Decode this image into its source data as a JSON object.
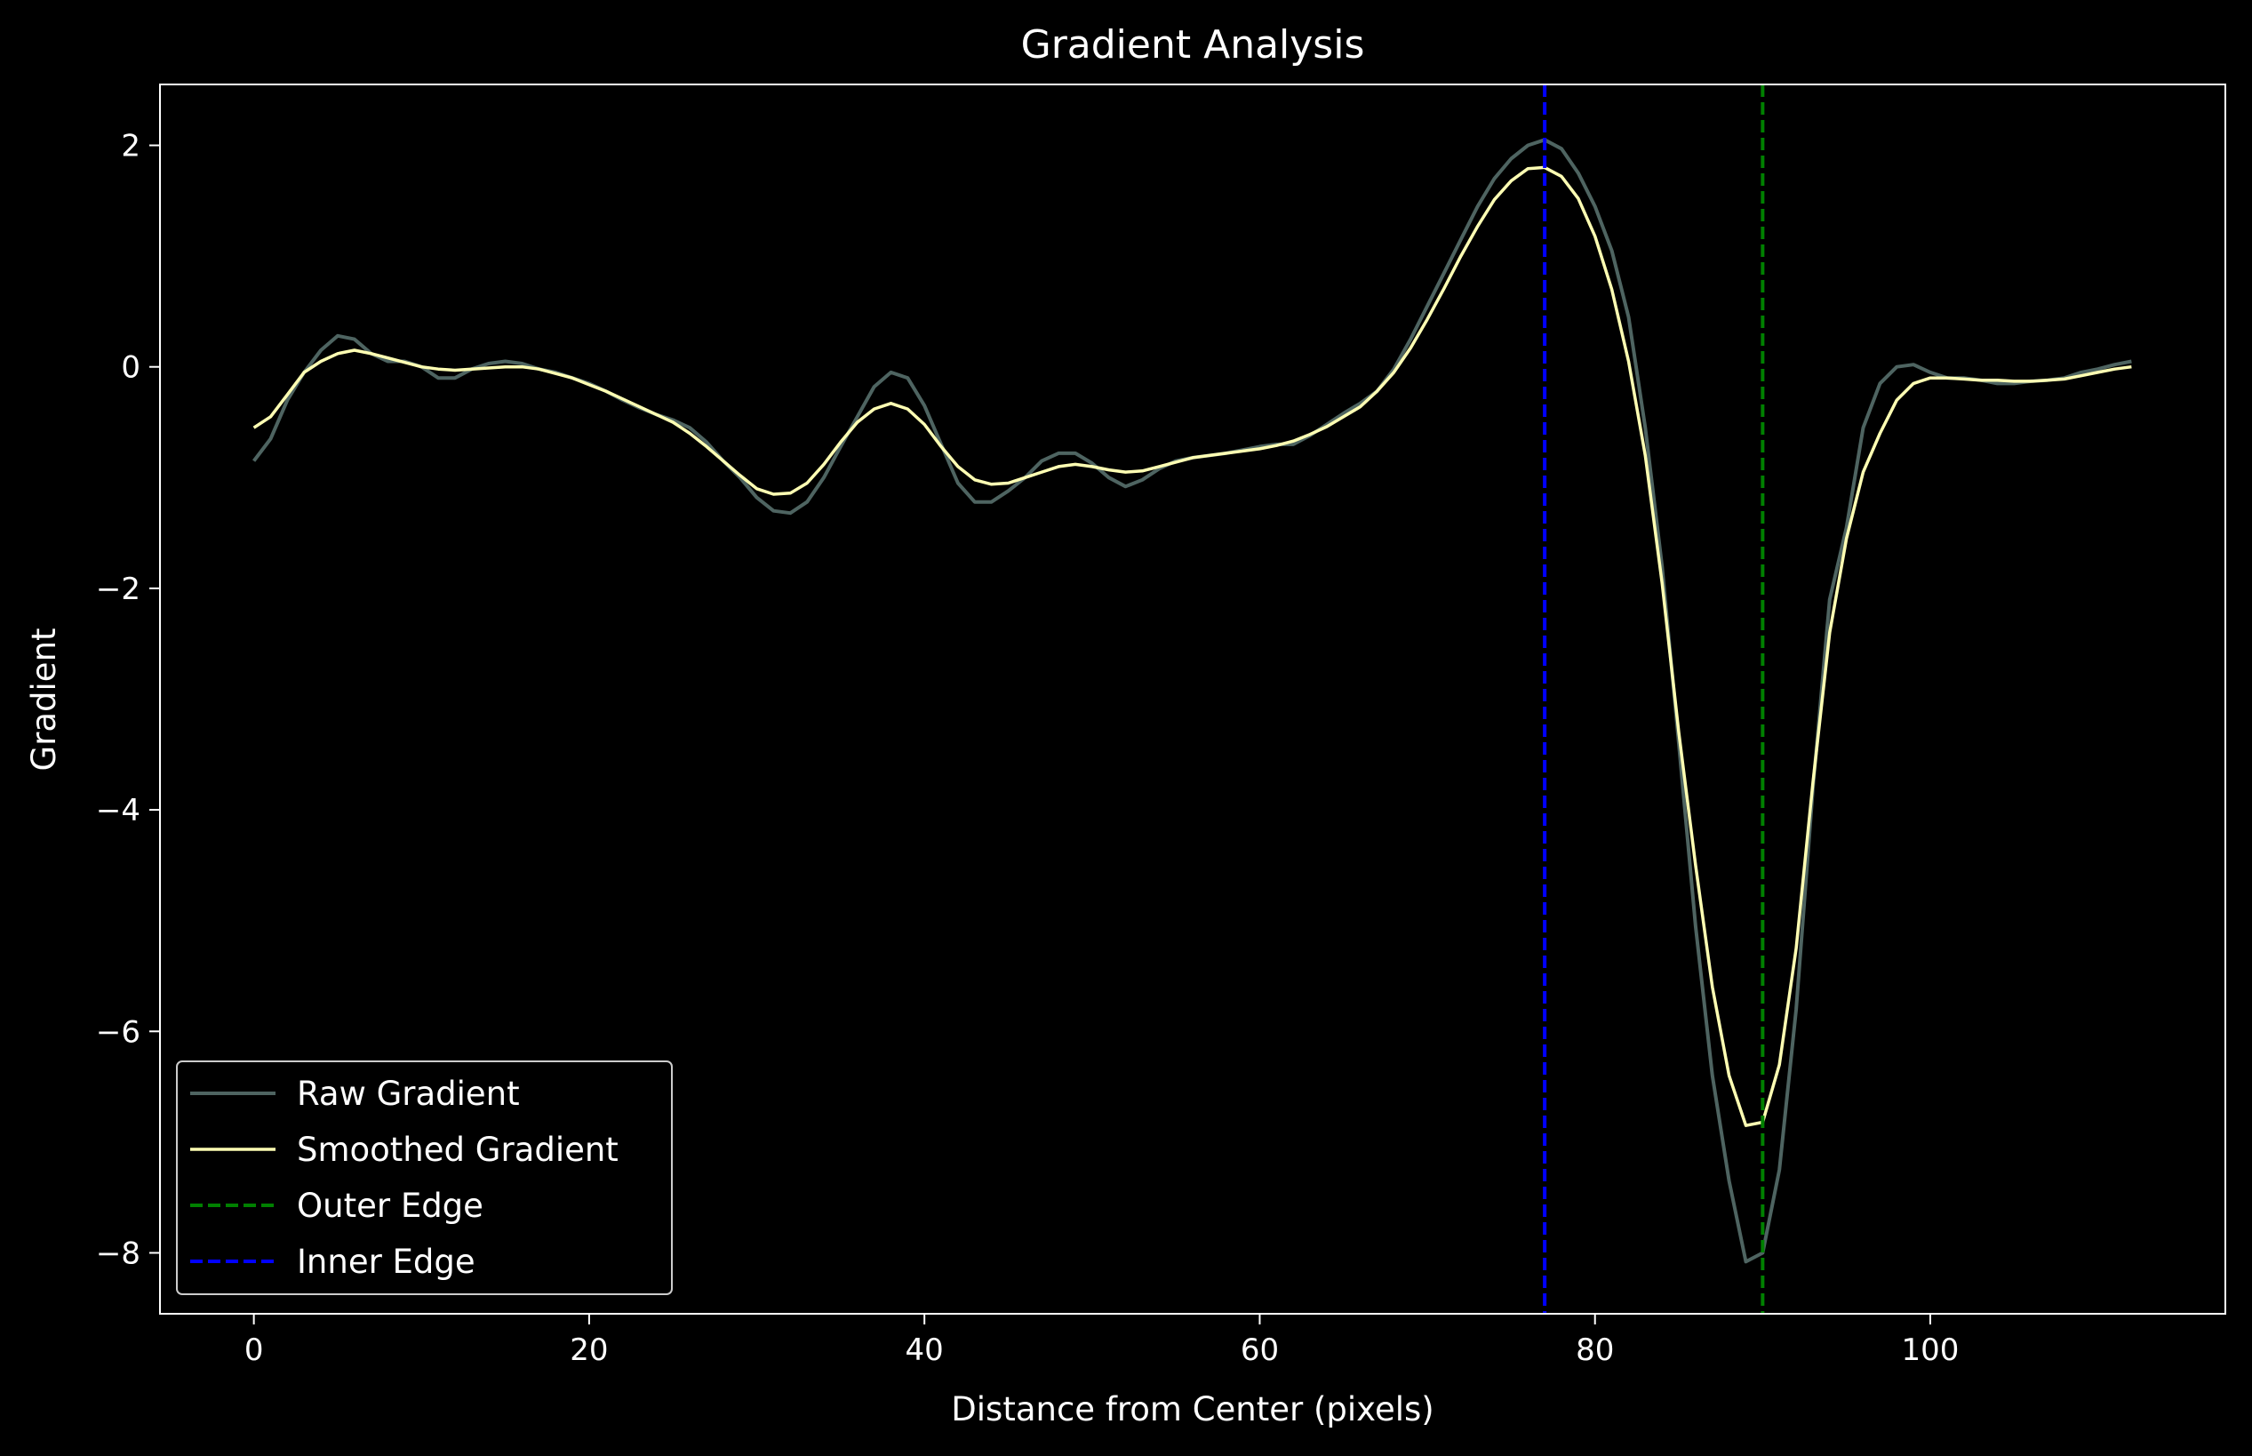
{
  "chart_data": {
    "type": "line",
    "title": "Gradient Analysis",
    "xlabel": "Distance from Center (pixels)",
    "ylabel": "Gradient",
    "xlim": [
      -5.6,
      117.6
    ],
    "ylim": [
      -8.55,
      2.55
    ],
    "xticks": [
      0,
      20,
      40,
      60,
      80,
      100
    ],
    "yticks": [
      2,
      0,
      -2,
      -4,
      -6,
      -8
    ],
    "xtick_labels": [
      "0",
      "20",
      "40",
      "60",
      "80",
      "100"
    ],
    "ytick_labels": [
      "2",
      "0",
      "−2",
      "−4",
      "−6",
      "−8"
    ],
    "grid": false,
    "legend_position": "lower-left",
    "series": [
      {
        "name": "Raw Gradient",
        "color": "#4e6461",
        "style": "solid",
        "points": [
          [
            0,
            -0.85
          ],
          [
            1,
            -0.65
          ],
          [
            2,
            -0.3
          ],
          [
            3,
            -0.05
          ],
          [
            4,
            0.15
          ],
          [
            5,
            0.28
          ],
          [
            6,
            0.25
          ],
          [
            7,
            0.12
          ],
          [
            8,
            0.05
          ],
          [
            9,
            0.05
          ],
          [
            10,
            0.0
          ],
          [
            11,
            -0.1
          ],
          [
            12,
            -0.1
          ],
          [
            13,
            -0.02
          ],
          [
            14,
            0.03
          ],
          [
            15,
            0.05
          ],
          [
            16,
            0.03
          ],
          [
            17,
            -0.02
          ],
          [
            18,
            -0.05
          ],
          [
            19,
            -0.1
          ],
          [
            20,
            -0.15
          ],
          [
            21,
            -0.22
          ],
          [
            22,
            -0.3
          ],
          [
            23,
            -0.37
          ],
          [
            24,
            -0.43
          ],
          [
            25,
            -0.48
          ],
          [
            26,
            -0.55
          ],
          [
            27,
            -0.68
          ],
          [
            28,
            -0.85
          ],
          [
            29,
            -1.0
          ],
          [
            30,
            -1.18
          ],
          [
            31,
            -1.3
          ],
          [
            32,
            -1.32
          ],
          [
            33,
            -1.22
          ],
          [
            34,
            -1.0
          ],
          [
            35,
            -0.72
          ],
          [
            36,
            -0.45
          ],
          [
            37,
            -0.18
          ],
          [
            38,
            -0.05
          ],
          [
            39,
            -0.1
          ],
          [
            40,
            -0.35
          ],
          [
            41,
            -0.7
          ],
          [
            42,
            -1.05
          ],
          [
            43,
            -1.22
          ],
          [
            44,
            -1.22
          ],
          [
            45,
            -1.12
          ],
          [
            46,
            -1.0
          ],
          [
            47,
            -0.85
          ],
          [
            48,
            -0.78
          ],
          [
            49,
            -0.78
          ],
          [
            50,
            -0.87
          ],
          [
            51,
            -1.0
          ],
          [
            52,
            -1.08
          ],
          [
            53,
            -1.02
          ],
          [
            54,
            -0.92
          ],
          [
            55,
            -0.85
          ],
          [
            56,
            -0.82
          ],
          [
            57,
            -0.8
          ],
          [
            58,
            -0.78
          ],
          [
            59,
            -0.75
          ],
          [
            60,
            -0.72
          ],
          [
            61,
            -0.7
          ],
          [
            62,
            -0.7
          ],
          [
            63,
            -0.62
          ],
          [
            64,
            -0.52
          ],
          [
            65,
            -0.42
          ],
          [
            66,
            -0.33
          ],
          [
            67,
            -0.22
          ],
          [
            68,
            -0.02
          ],
          [
            69,
            0.25
          ],
          [
            70,
            0.55
          ],
          [
            71,
            0.85
          ],
          [
            72,
            1.15
          ],
          [
            73,
            1.45
          ],
          [
            74,
            1.7
          ],
          [
            75,
            1.88
          ],
          [
            76,
            2.0
          ],
          [
            77,
            2.05
          ],
          [
            78,
            1.97
          ],
          [
            79,
            1.75
          ],
          [
            80,
            1.45
          ],
          [
            81,
            1.05
          ],
          [
            82,
            0.45
          ],
          [
            83,
            -0.55
          ],
          [
            84,
            -1.8
          ],
          [
            85,
            -3.4
          ],
          [
            86,
            -5.05
          ],
          [
            87,
            -6.4
          ],
          [
            88,
            -7.35
          ],
          [
            89,
            -8.08
          ],
          [
            90,
            -8.0
          ],
          [
            91,
            -7.25
          ],
          [
            92,
            -5.8
          ],
          [
            93,
            -3.8
          ],
          [
            94,
            -2.1
          ],
          [
            95,
            -1.45
          ],
          [
            96,
            -0.55
          ],
          [
            97,
            -0.15
          ],
          [
            98,
            0.0
          ],
          [
            99,
            0.02
          ],
          [
            100,
            -0.05
          ],
          [
            101,
            -0.1
          ],
          [
            102,
            -0.1
          ],
          [
            103,
            -0.12
          ],
          [
            104,
            -0.15
          ],
          [
            105,
            -0.15
          ],
          [
            106,
            -0.13
          ],
          [
            107,
            -0.12
          ],
          [
            108,
            -0.1
          ],
          [
            109,
            -0.05
          ],
          [
            110,
            -0.02
          ],
          [
            111,
            0.02
          ],
          [
            112,
            0.05
          ]
        ]
      },
      {
        "name": "Smoothed Gradient",
        "color": "#ffffb3",
        "style": "solid",
        "points": [
          [
            0,
            -0.55
          ],
          [
            1,
            -0.45
          ],
          [
            2,
            -0.25
          ],
          [
            3,
            -0.05
          ],
          [
            4,
            0.05
          ],
          [
            5,
            0.12
          ],
          [
            6,
            0.15
          ],
          [
            7,
            0.12
          ],
          [
            8,
            0.08
          ],
          [
            9,
            0.04
          ],
          [
            10,
            0.0
          ],
          [
            11,
            -0.02
          ],
          [
            12,
            -0.03
          ],
          [
            13,
            -0.02
          ],
          [
            14,
            -0.01
          ],
          [
            15,
            0.0
          ],
          [
            16,
            0.0
          ],
          [
            17,
            -0.02
          ],
          [
            18,
            -0.06
          ],
          [
            19,
            -0.1
          ],
          [
            20,
            -0.16
          ],
          [
            21,
            -0.22
          ],
          [
            22,
            -0.29
          ],
          [
            23,
            -0.36
          ],
          [
            24,
            -0.43
          ],
          [
            25,
            -0.5
          ],
          [
            26,
            -0.6
          ],
          [
            27,
            -0.72
          ],
          [
            28,
            -0.85
          ],
          [
            29,
            -0.98
          ],
          [
            30,
            -1.1
          ],
          [
            31,
            -1.15
          ],
          [
            32,
            -1.14
          ],
          [
            33,
            -1.05
          ],
          [
            34,
            -0.88
          ],
          [
            35,
            -0.68
          ],
          [
            36,
            -0.5
          ],
          [
            37,
            -0.38
          ],
          [
            38,
            -0.33
          ],
          [
            39,
            -0.38
          ],
          [
            40,
            -0.52
          ],
          [
            41,
            -0.72
          ],
          [
            42,
            -0.9
          ],
          [
            43,
            -1.02
          ],
          [
            44,
            -1.06
          ],
          [
            45,
            -1.05
          ],
          [
            46,
            -1.0
          ],
          [
            47,
            -0.95
          ],
          [
            48,
            -0.9
          ],
          [
            49,
            -0.88
          ],
          [
            50,
            -0.9
          ],
          [
            51,
            -0.93
          ],
          [
            52,
            -0.95
          ],
          [
            53,
            -0.94
          ],
          [
            54,
            -0.9
          ],
          [
            55,
            -0.86
          ],
          [
            56,
            -0.82
          ],
          [
            57,
            -0.8
          ],
          [
            58,
            -0.78
          ],
          [
            59,
            -0.76
          ],
          [
            60,
            -0.74
          ],
          [
            61,
            -0.71
          ],
          [
            62,
            -0.67
          ],
          [
            63,
            -0.61
          ],
          [
            64,
            -0.54
          ],
          [
            65,
            -0.45
          ],
          [
            66,
            -0.36
          ],
          [
            67,
            -0.22
          ],
          [
            68,
            -0.05
          ],
          [
            69,
            0.17
          ],
          [
            70,
            0.43
          ],
          [
            71,
            0.71
          ],
          [
            72,
            1.0
          ],
          [
            73,
            1.27
          ],
          [
            74,
            1.51
          ],
          [
            75,
            1.68
          ],
          [
            76,
            1.79
          ],
          [
            77,
            1.8
          ],
          [
            78,
            1.72
          ],
          [
            79,
            1.52
          ],
          [
            80,
            1.18
          ],
          [
            81,
            0.7
          ],
          [
            82,
            0.05
          ],
          [
            83,
            -0.8
          ],
          [
            84,
            -1.95
          ],
          [
            85,
            -3.3
          ],
          [
            86,
            -4.5
          ],
          [
            87,
            -5.6
          ],
          [
            88,
            -6.4
          ],
          [
            89,
            -6.85
          ],
          [
            90,
            -6.82
          ],
          [
            91,
            -6.3
          ],
          [
            92,
            -5.25
          ],
          [
            93,
            -3.75
          ],
          [
            94,
            -2.4
          ],
          [
            95,
            -1.55
          ],
          [
            96,
            -0.95
          ],
          [
            97,
            -0.6
          ],
          [
            98,
            -0.3
          ],
          [
            99,
            -0.15
          ],
          [
            100,
            -0.1
          ],
          [
            101,
            -0.1
          ],
          [
            102,
            -0.11
          ],
          [
            103,
            -0.12
          ],
          [
            104,
            -0.12
          ],
          [
            105,
            -0.13
          ],
          [
            106,
            -0.13
          ],
          [
            107,
            -0.12
          ],
          [
            108,
            -0.11
          ],
          [
            109,
            -0.08
          ],
          [
            110,
            -0.05
          ],
          [
            111,
            -0.02
          ],
          [
            112,
            0.0
          ]
        ]
      },
      {
        "name": "Outer Edge",
        "color": "#008000",
        "style": "dashed",
        "vline": 90
      },
      {
        "name": "Inner Edge",
        "color": "#0000ff",
        "style": "dashed",
        "vline": 77
      }
    ]
  }
}
